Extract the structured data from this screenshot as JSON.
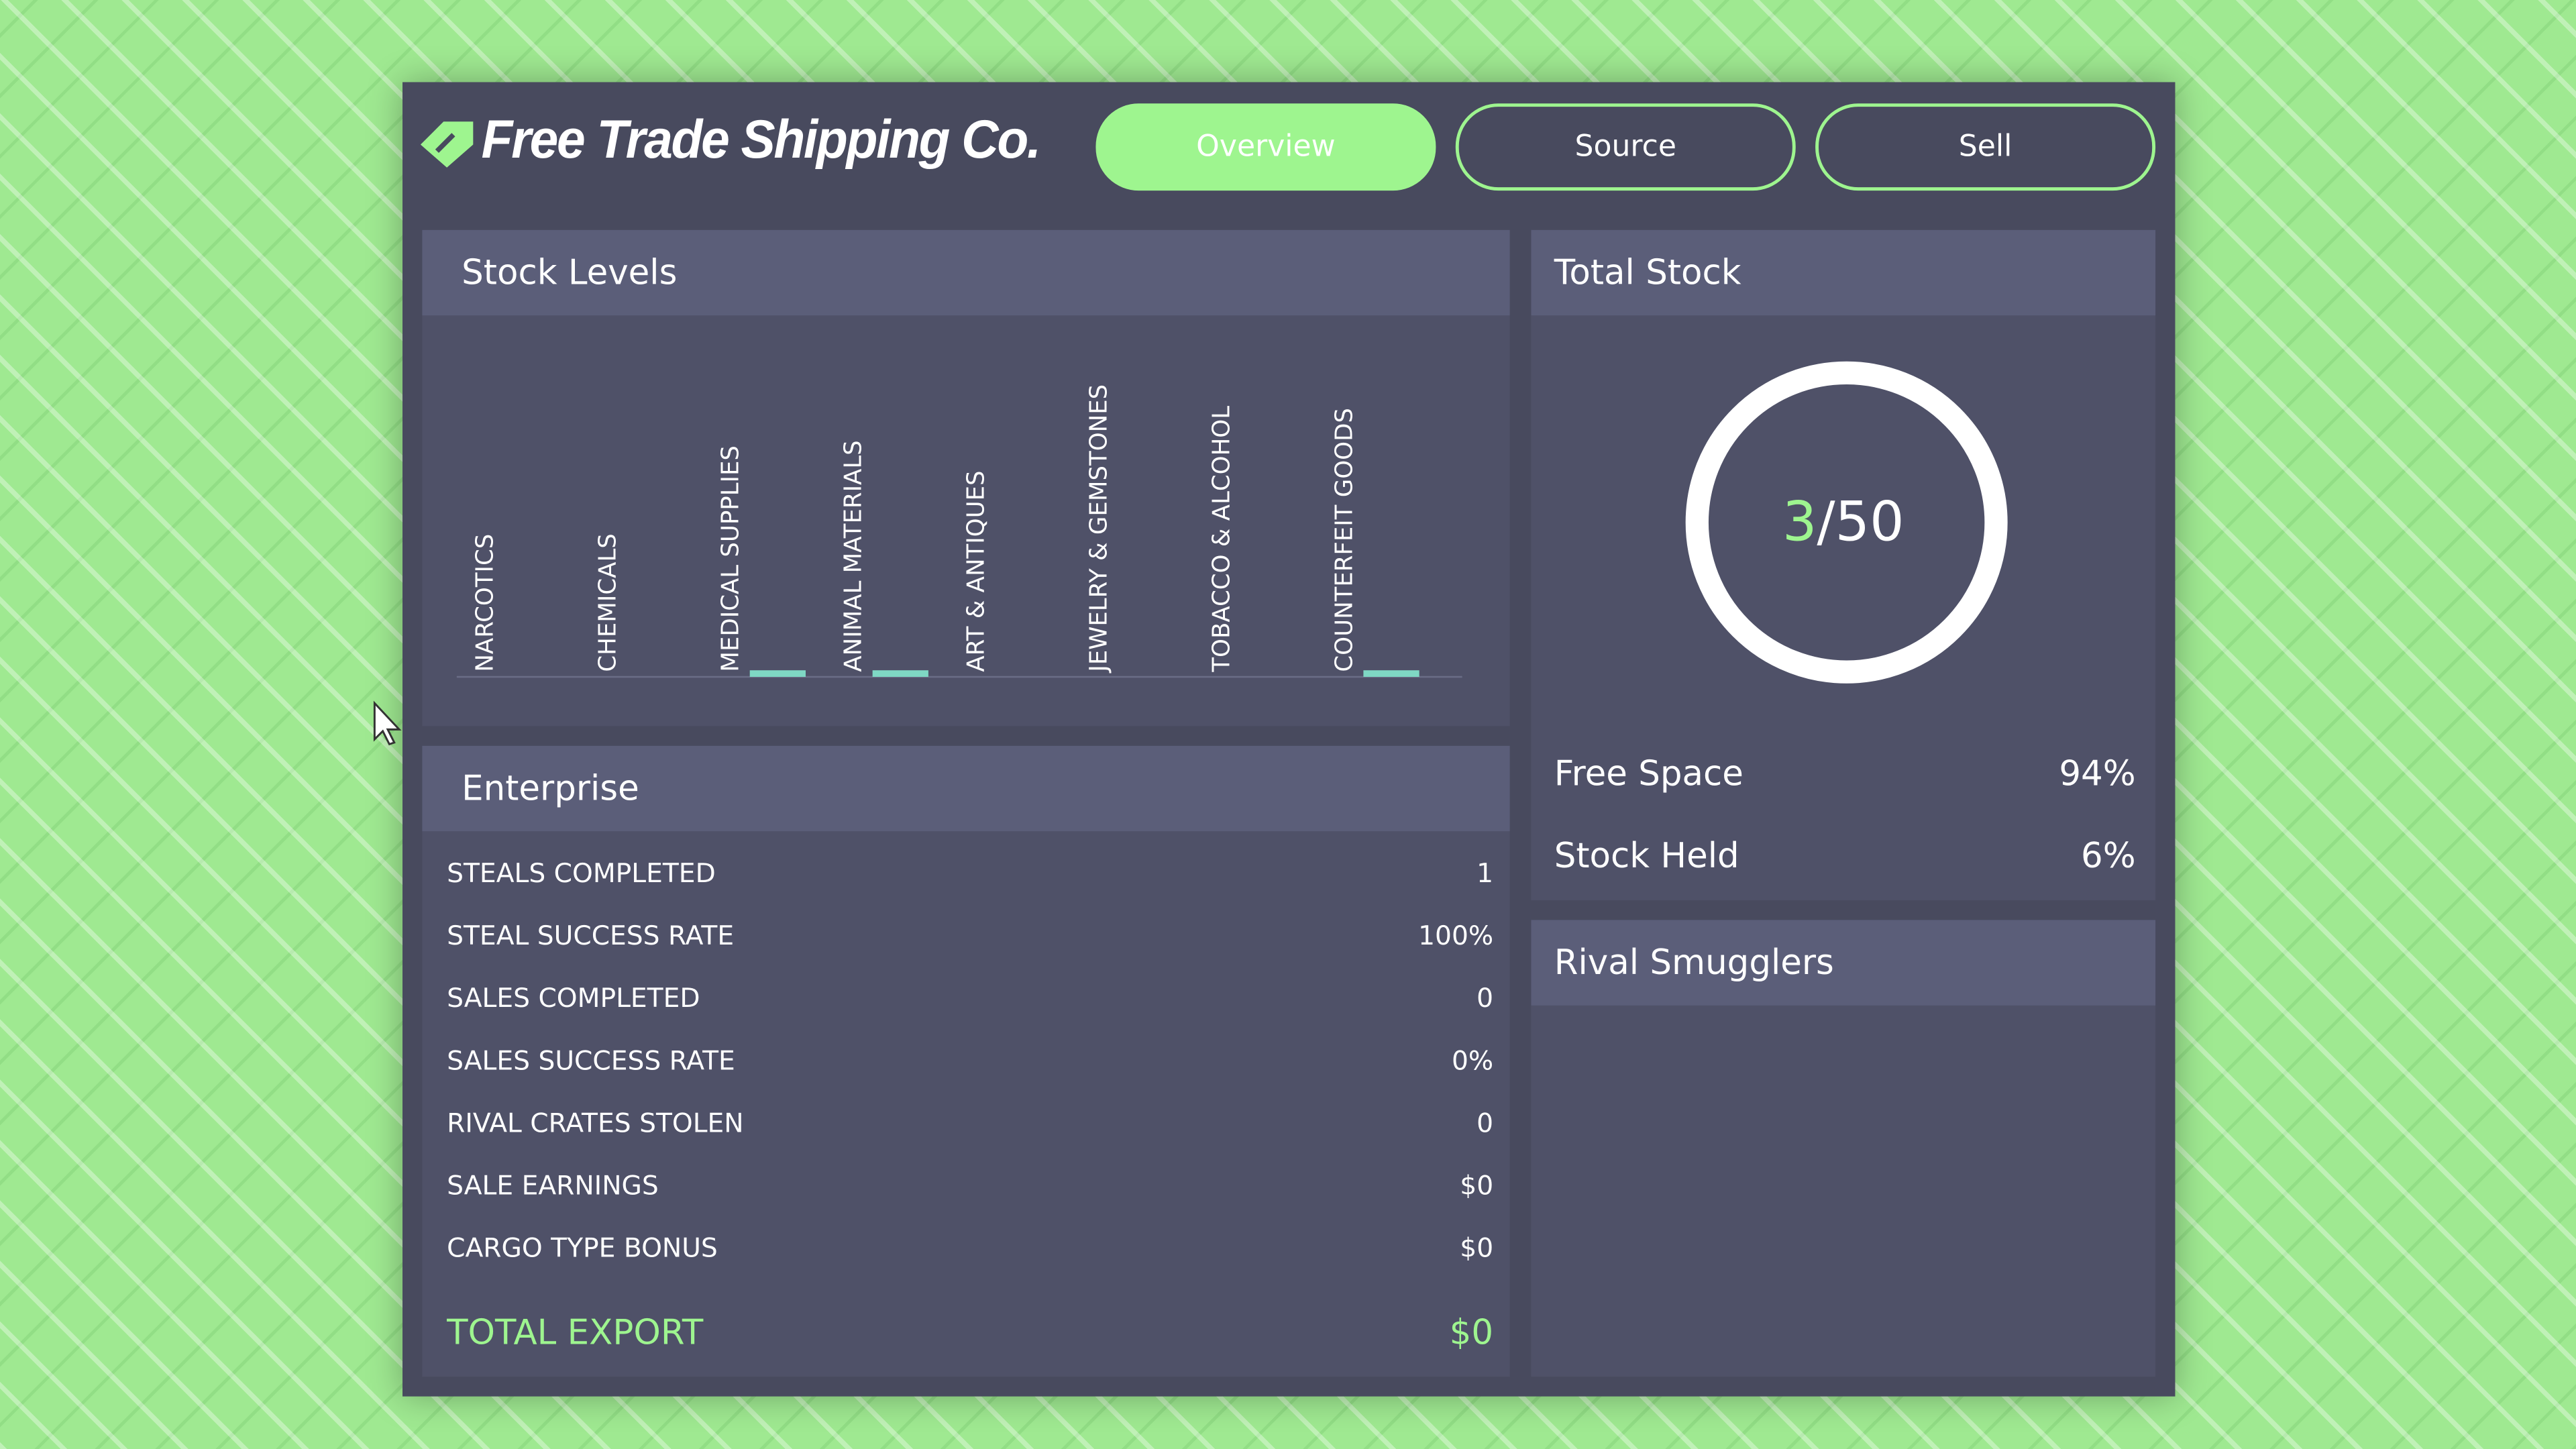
{
  "header": {
    "title": "Free Trade Shipping Co.",
    "tabs": [
      "Overview",
      "Source",
      "Sell"
    ]
  },
  "stock_levels": {
    "title": "Stock Levels",
    "chart_data": {
      "type": "bar",
      "categories": [
        "NARCOTICS",
        "CHEMICALS",
        "MEDICAL SUPPLIES",
        "ANIMAL MATERIALS",
        "ART & ANTIQUES",
        "JEWELRY & GEMSTONES",
        "TOBACCO & ALCOHOL",
        "COUNTERFEIT GOODS"
      ],
      "values": [
        0,
        0,
        1,
        1,
        0,
        0,
        0,
        1
      ],
      "color": "#7fd8c4"
    }
  },
  "enterprise": {
    "title": "Enterprise",
    "rows": [
      [
        "STEALS COMPLETED",
        "1"
      ],
      [
        "STEAL SUCCESS RATE",
        "100%"
      ],
      [
        "SALES COMPLETED",
        "0"
      ],
      [
        "SALES SUCCESS RATE",
        "0%"
      ],
      [
        "RIVAL CRATES STOLEN",
        "0"
      ],
      [
        "SALE EARNINGS",
        "$0"
      ],
      [
        "CARGO TYPE BONUS",
        "$0"
      ]
    ],
    "total": [
      "TOTAL EXPORT",
      "$0"
    ]
  },
  "total_stock": {
    "title": "Total Stock",
    "held": "3",
    "capacity": "/50",
    "rows": [
      [
        "Free Space",
        "94%"
      ],
      [
        "Stock Held",
        "6%"
      ]
    ]
  },
  "rival_smugglers": {
    "title": "Rival Smugglers"
  }
}
